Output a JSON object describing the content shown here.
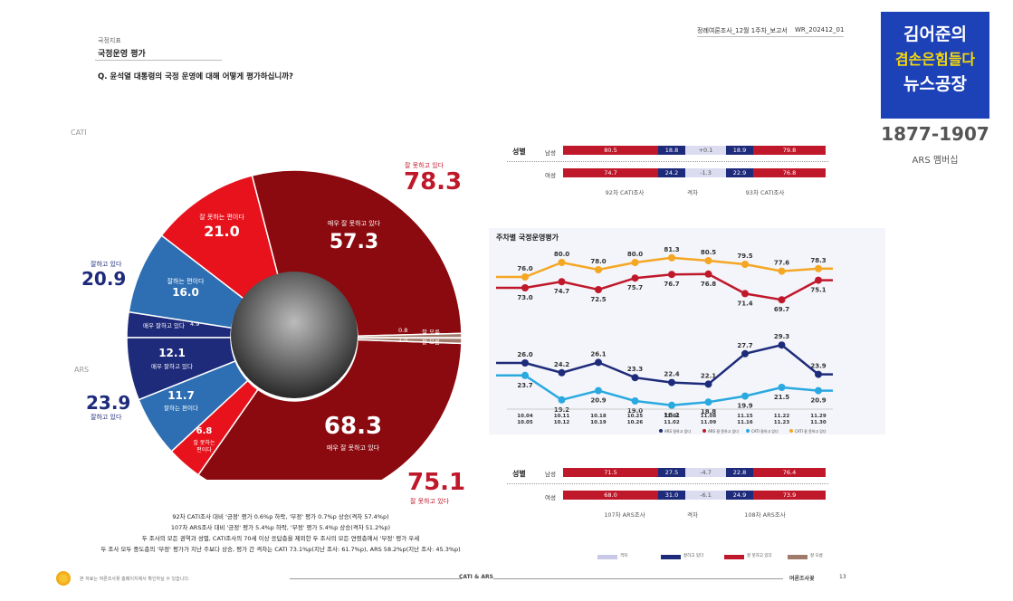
{
  "header": {
    "section": "국정지표",
    "title": "국정운영 평가",
    "question": "Q. 윤석열 대통령의 국정 운영에 대해 어떻게 평가하십니까?",
    "report": "정례여론조사_12월 1주차_보고서",
    "code": "WR_202412_01"
  },
  "brand": {
    "line1": "김어준의",
    "line2": "겸손은힘들다",
    "line3": "뉴스공장",
    "phone": "1877-1907",
    "sub": "ARS 멤버십"
  },
  "donut": {
    "cati_label": "CATI",
    "ars_label": "ARS",
    "cati_neg_total_label": "잘 못하고 있다",
    "cati_neg_total": "78.3",
    "cati_pos_total_label": "잘하고 있다",
    "cati_pos_total": "20.9",
    "ars_pos_total_label": "잘하고 있다",
    "ars_pos_total": "23.9",
    "ars_neg_total": "75.1",
    "ars_neg_total_label": "잘 못하고 있다",
    "cati_very_bad_label": "매우 잘 못하고 있다",
    "cati_very_bad": "57.3",
    "cati_bad_label": "잘 못하는 편이다",
    "cati_bad": "21.0",
    "cati_good_label": "잘하는 편이다",
    "cati_good": "16.0",
    "cati_very_good_label": "매우 잘하고 있다",
    "cati_very_good": "4.9",
    "cati_dk_value": "0.8",
    "cati_dk_label": "잘 모름",
    "ars_dk_value": "1.0",
    "ars_dk_label": "잘 모름",
    "ars_very_good": "12.1",
    "ars_very_good_label": "매우 잘하고 있다",
    "ars_good": "11.7",
    "ars_good_label": "잘하는 편이다",
    "ars_bad": "6.8",
    "ars_bad_label1": "잘 못하는",
    "ars_bad_label2": "편이다",
    "ars_very_bad": "68.3",
    "ars_very_bad_label": "매우 잘 못하고 있다"
  },
  "notes": [
    "92차 CATI조사 대비 '긍정' 평가 0.6%p 하락, '부정' 평가 0.7%p 상승(격차 57.4%p)",
    "107차 ARS조사 대비 '긍정' 평가 5.4%p 하락, '부정' 평가 5.4%p 상승(격차 51.2%p)",
    "두 조사의 모든 권역과 성별, CATI조사의 70세 이상 응답층을 제외한 두 조사의 모든 연령층에서 '부정' 평가 우세",
    "두 조사 모두 중도층의 '부정' 평가가 지난 주보다 상승, 평가 간 격차는 CATI 73.1%p(지난 조사: 61.7%p), ARS 58.2%p(지난 조사: 45.3%p)"
  ],
  "cmp_top": {
    "head": "성별",
    "rows": [
      {
        "label": "남성",
        "a": "80.5",
        "b": "18.8",
        "diff": "+0.1",
        "c": "18.9",
        "d": "79.8"
      },
      {
        "label": "여성",
        "a": "74.7",
        "b": "24.2",
        "diff": "-1.3",
        "c": "22.9",
        "d": "76.8"
      }
    ],
    "foot_left": "92차 CATI조사",
    "foot_mid": "격차",
    "foot_right": "93차 CATI조사"
  },
  "cmp_bottom": {
    "head": "성별",
    "rows": [
      {
        "label": "남성",
        "a": "71.5",
        "b": "27.5",
        "diff": "-4.7",
        "c": "22.8",
        "d": "76.4"
      },
      {
        "label": "여성",
        "a": "68.0",
        "b": "31.0",
        "diff": "-6.1",
        "c": "24.9",
        "d": "73.9"
      }
    ],
    "foot_left": "107차 ARS조사",
    "foot_mid": "격차",
    "foot_right": "108차 ARS조사"
  },
  "chart_data": {
    "type": "line",
    "title": "주차별 국정운영평가",
    "x": [
      "10.04\n10.05",
      "10.11\n10.12",
      "10.18\n10.19",
      "10.25\n10.26",
      "11.01\n11.02",
      "11.08\n11.09",
      "11.15\n11.16",
      "11.22\n11.23",
      "11.29\n11.30"
    ],
    "x_top": [
      "10.04",
      "10.11",
      "10.18",
      "10.25",
      "11.01",
      "11.08",
      "11.15",
      "11.22",
      "11.29"
    ],
    "x_bottom": [
      "10.05",
      "10.12",
      "10.19",
      "10.26",
      "11.02",
      "11.09",
      "11.16",
      "11.23",
      "11.30"
    ],
    "series": [
      {
        "name": "CATI 잘 못하고 있다",
        "color": "#f5a623",
        "values": [
          76.0,
          80.0,
          78.0,
          80.0,
          81.3,
          80.5,
          79.5,
          77.6,
          78.3
        ]
      },
      {
        "name": "ARS 잘 못하고 있다",
        "color": "#c0182b",
        "values": [
          73.0,
          74.7,
          72.5,
          75.7,
          76.7,
          76.8,
          71.4,
          69.7,
          75.1
        ]
      },
      {
        "name": "ARS 잘하고 있다",
        "color": "#1e2a7a",
        "values": [
          26.0,
          24.2,
          26.1,
          23.3,
          22.4,
          22.1,
          27.7,
          29.3,
          23.9
        ]
      },
      {
        "name": "CATI 잘하고 있다",
        "color": "#2aa9e0",
        "values": [
          23.7,
          19.2,
          20.9,
          19.0,
          18.2,
          18.8,
          19.9,
          21.5,
          20.9
        ]
      }
    ],
    "legend": [
      "ARS 잘하고 있다",
      "ARS 잘 못하고 있다",
      "CATI 잘하고 있다",
      "CATI 잘 못하고 있다"
    ]
  },
  "bottom_legend": [
    "격차",
    "잘하고 있다",
    "잘 못하고 있다",
    "잘 모름"
  ],
  "footer": {
    "center": "CATI & ARS",
    "right": "여론조사꽃",
    "page": "13",
    "left": "본 자료는 여론조사꽃 홈페이지에서 확인하실 수 있습니다."
  },
  "colors": {
    "dark_red": "#8b0a0f",
    "red": "#e8121c",
    "blue": "#2e6fb3",
    "navy": "#1e2a7a",
    "brown": "#a07a6a"
  }
}
